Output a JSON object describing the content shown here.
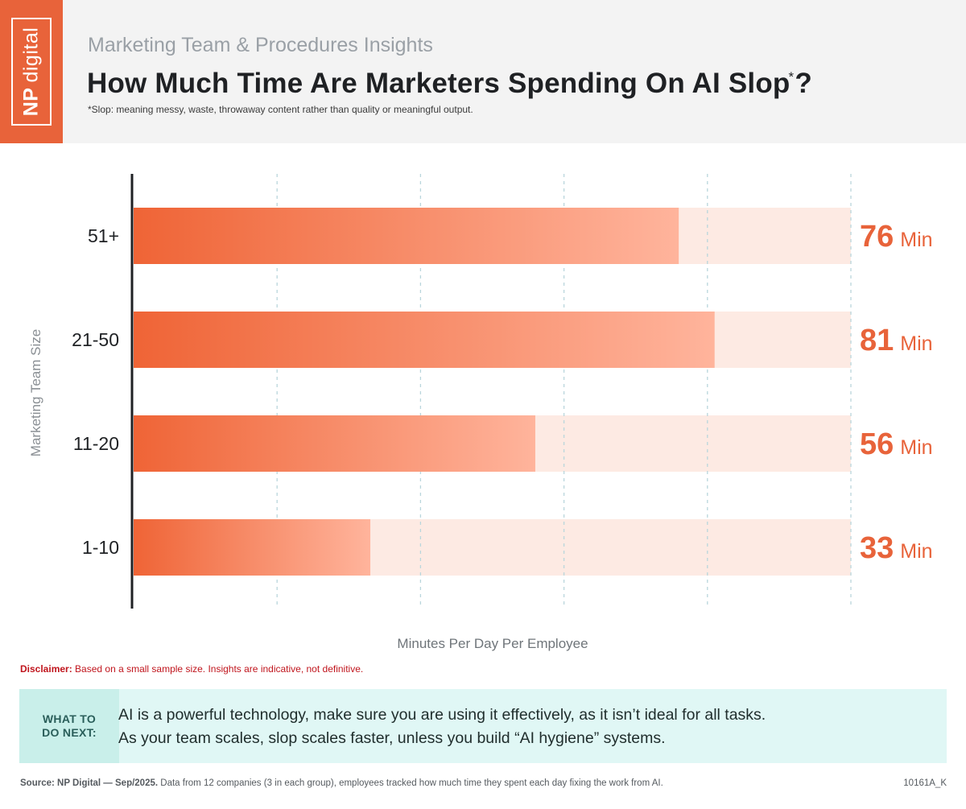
{
  "brand": {
    "logo_bold": "NP",
    "logo_light": "digital",
    "accent": "#e8633a"
  },
  "header": {
    "subtitle": "Marketing Team & Procedures Insights",
    "title": "How Much Time Are Marketers Spending On AI Slop",
    "title_mark": "*",
    "title_end": "?",
    "footnote": "*Slop: meaning messy, waste, throwaway content rather than quality or meaningful output."
  },
  "chart_data": {
    "type": "bar",
    "orientation": "horizontal",
    "categories": [
      "51+",
      "21-50",
      "11-20",
      "1-10"
    ],
    "values": [
      76,
      81,
      56,
      33
    ],
    "value_labels": [
      "76",
      "81",
      "56",
      "33"
    ],
    "value_unit": "Min",
    "xlabel": "Minutes Per Day Per Employee",
    "ylabel": "Marketing Team Size",
    "xlim": [
      0,
      100
    ],
    "grid": true,
    "colors": {
      "bar_start": "#ef6436",
      "bar_end": "#ffb49c",
      "track": "#fdeae3",
      "value": "#e8633a"
    }
  },
  "disclaimer": {
    "label": "Disclaimer:",
    "text": " Based on a small sample size. Insights are indicative, not definitive."
  },
  "next": {
    "label_line1": "WHAT TO",
    "label_line2": "DO NEXT:",
    "line1": "AI is a powerful technology, make sure you are using it effectively, as it isn’t ideal for all tasks.",
    "line2": "As your team scales, slop scales faster, unless you build “AI hygiene” systems."
  },
  "footer": {
    "source_label": "Source: NP Digital — Sep/2025.",
    "source_text": " Data from 12 companies (3 in each group), employees tracked how much time they spent each day fixing the work from AI.",
    "code": "10161A_K"
  }
}
